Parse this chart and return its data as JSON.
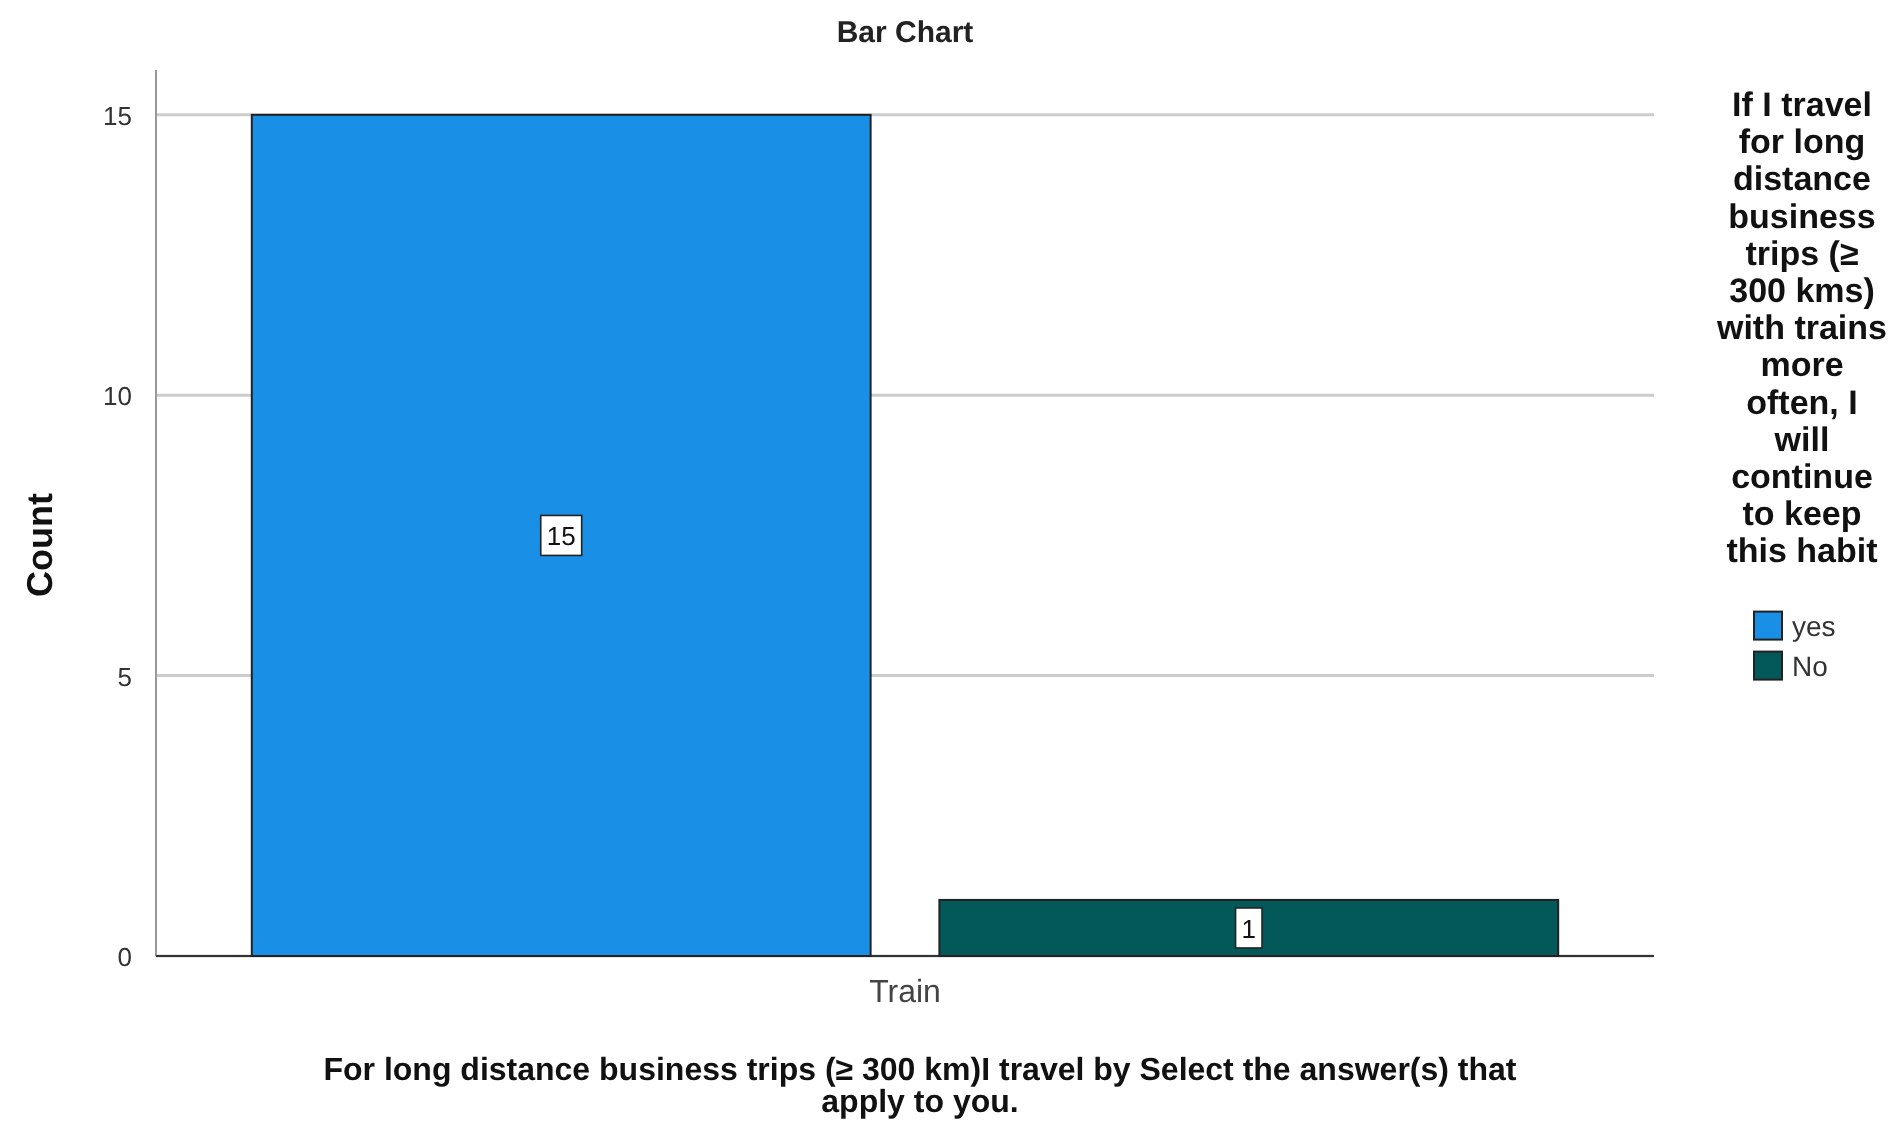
{
  "chart_data": {
    "type": "bar",
    "title": "Bar Chart",
    "xlabel": "For long distance business trips (≥ 300 km)I travel by Select the answer(s) that apply to you.",
    "ylabel": "Count",
    "legend_title": "If I travel for long distance business trips (≥ 300 kms) with trains more often, I will continue to keep this habit",
    "categories": [
      "Train"
    ],
    "series": [
      {
        "name": "yes",
        "color": "#1990e5",
        "values": [
          15
        ]
      },
      {
        "name": "No",
        "color": "#03595a",
        "values": [
          1
        ]
      }
    ],
    "ylim": [
      0,
      15.8
    ],
    "yticks": [
      0,
      5,
      10,
      15
    ],
    "grid": "y",
    "legend": "right",
    "data_labels": true
  }
}
